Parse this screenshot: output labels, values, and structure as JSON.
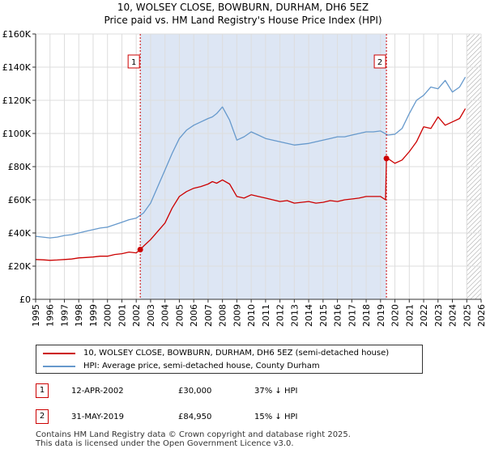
{
  "title_line1": "10, WOLSEY CLOSE, BOWBURN, DURHAM, DH6 5EZ",
  "title_line2": "Price paid vs. HM Land Registry's House Price Index (HPI)",
  "colors": {
    "price": "#cc0000",
    "hpi": "#6699cc",
    "shade": "#dde6f4",
    "grid": "#dddddd"
  },
  "chart_data": {
    "type": "line",
    "xlabel": "",
    "ylabel": "",
    "xlim": [
      1995,
      2026
    ],
    "ylim": [
      0,
      160000
    ],
    "x_ticks": [
      "1995",
      "1996",
      "1997",
      "1998",
      "1999",
      "2000",
      "2001",
      "2002",
      "2003",
      "2004",
      "2005",
      "2006",
      "2007",
      "2008",
      "2009",
      "2010",
      "2011",
      "2012",
      "2013",
      "2014",
      "2015",
      "2016",
      "2017",
      "2018",
      "2019",
      "2020",
      "2021",
      "2022",
      "2023",
      "2024",
      "2025",
      "2026"
    ],
    "y_ticks": [
      "£0",
      "£20K",
      "£40K",
      "£60K",
      "£80K",
      "£100K",
      "£120K",
      "£140K",
      "£160K"
    ],
    "y_tick_values": [
      0,
      20000,
      40000,
      60000,
      80000,
      100000,
      120000,
      140000,
      160000
    ],
    "shaded_region": [
      2002.28,
      2019.41
    ],
    "hatched_from": 2025.0,
    "series": [
      {
        "name": "10, WOLSEY CLOSE, BOWBURN, DURHAM, DH6 5EZ (semi-detached house)",
        "color": "#cc0000",
        "x": [
          1995.0,
          1995.5,
          1996.0,
          1996.5,
          1997.0,
          1997.5,
          1998.0,
          1998.5,
          1999.0,
          1999.5,
          2000.0,
          2000.5,
          2001.0,
          2001.5,
          2002.0,
          2002.28,
          2002.5,
          2003.0,
          2003.5,
          2004.0,
          2004.5,
          2005.0,
          2005.5,
          2006.0,
          2006.5,
          2007.0,
          2007.3,
          2007.6,
          2008.0,
          2008.5,
          2009.0,
          2009.5,
          2010.0,
          2010.5,
          2011.0,
          2011.5,
          2012.0,
          2012.5,
          2013.0,
          2013.5,
          2014.0,
          2014.5,
          2015.0,
          2015.5,
          2016.0,
          2016.5,
          2017.0,
          2017.5,
          2018.0,
          2018.5,
          2019.0,
          2019.35,
          2019.41,
          2019.5,
          2020.0,
          2020.5,
          2021.0,
          2021.5,
          2022.0,
          2022.5,
          2023.0,
          2023.5,
          2024.0,
          2024.5,
          2024.9
        ],
        "y": [
          24000,
          23800,
          23500,
          23700,
          24000,
          24300,
          25000,
          25200,
          25500,
          26000,
          26000,
          27000,
          27500,
          28500,
          28000,
          30000,
          32000,
          36000,
          41000,
          46000,
          55000,
          62000,
          65000,
          67000,
          68000,
          69500,
          71000,
          70000,
          72000,
          69500,
          62000,
          61000,
          63000,
          62000,
          61000,
          60000,
          59000,
          59500,
          58000,
          58500,
          59000,
          58000,
          58500,
          59500,
          59000,
          60000,
          60500,
          61000,
          62000,
          62000,
          62000,
          60000,
          84950,
          85000,
          82000,
          84000,
          89000,
          95000,
          104000,
          103000,
          110000,
          105000,
          107000,
          109000,
          115000
        ]
      },
      {
        "name": "HPI: Average price, semi-detached house, County Durham",
        "color": "#6699cc",
        "x": [
          1995.0,
          1995.5,
          1996.0,
          1996.5,
          1997.0,
          1997.5,
          1998.0,
          1998.5,
          1999.0,
          1999.5,
          2000.0,
          2000.5,
          2001.0,
          2001.5,
          2002.0,
          2002.5,
          2003.0,
          2003.5,
          2004.0,
          2004.5,
          2005.0,
          2005.5,
          2006.0,
          2006.5,
          2007.0,
          2007.3,
          2007.6,
          2008.0,
          2008.5,
          2009.0,
          2009.5,
          2010.0,
          2010.5,
          2011.0,
          2011.5,
          2012.0,
          2012.5,
          2013.0,
          2013.5,
          2014.0,
          2014.5,
          2015.0,
          2015.5,
          2016.0,
          2016.5,
          2017.0,
          2017.5,
          2018.0,
          2018.5,
          2019.0,
          2019.5,
          2020.0,
          2020.5,
          2021.0,
          2021.5,
          2022.0,
          2022.5,
          2023.0,
          2023.5,
          2024.0,
          2024.5,
          2024.9
        ],
        "y": [
          38000,
          37500,
          37000,
          37500,
          38500,
          39000,
          40000,
          41000,
          42000,
          43000,
          43500,
          45000,
          46500,
          48000,
          49000,
          52000,
          58000,
          68000,
          78000,
          88000,
          97000,
          102000,
          105000,
          107000,
          109000,
          110000,
          112000,
          116000,
          108000,
          96000,
          98000,
          101000,
          99000,
          97000,
          96000,
          95000,
          94000,
          93000,
          93500,
          94000,
          95000,
          96000,
          97000,
          98000,
          98000,
          99000,
          100000,
          101000,
          101000,
          101500,
          99000,
          99500,
          103000,
          112000,
          120000,
          123000,
          128000,
          127000,
          132000,
          125000,
          128000,
          134000
        ]
      }
    ],
    "annotations": [
      {
        "label": "1",
        "x": 2002.28,
        "y": 30000
      },
      {
        "label": "2",
        "x": 2019.41,
        "y": 84950
      }
    ]
  },
  "legend": {
    "price_label": "10, WOLSEY CLOSE, BOWBURN, DURHAM, DH6 5EZ (semi-detached house)",
    "hpi_label": "HPI: Average price, semi-detached house, County Durham"
  },
  "transactions": [
    {
      "num": "1",
      "date": "12-APR-2002",
      "price": "£30,000",
      "diff": "37% ↓ HPI"
    },
    {
      "num": "2",
      "date": "31-MAY-2019",
      "price": "£84,950",
      "diff": "15% ↓ HPI"
    }
  ],
  "footer_line1": "Contains HM Land Registry data © Crown copyright and database right 2025.",
  "footer_line2": "This data is licensed under the Open Government Licence v3.0."
}
